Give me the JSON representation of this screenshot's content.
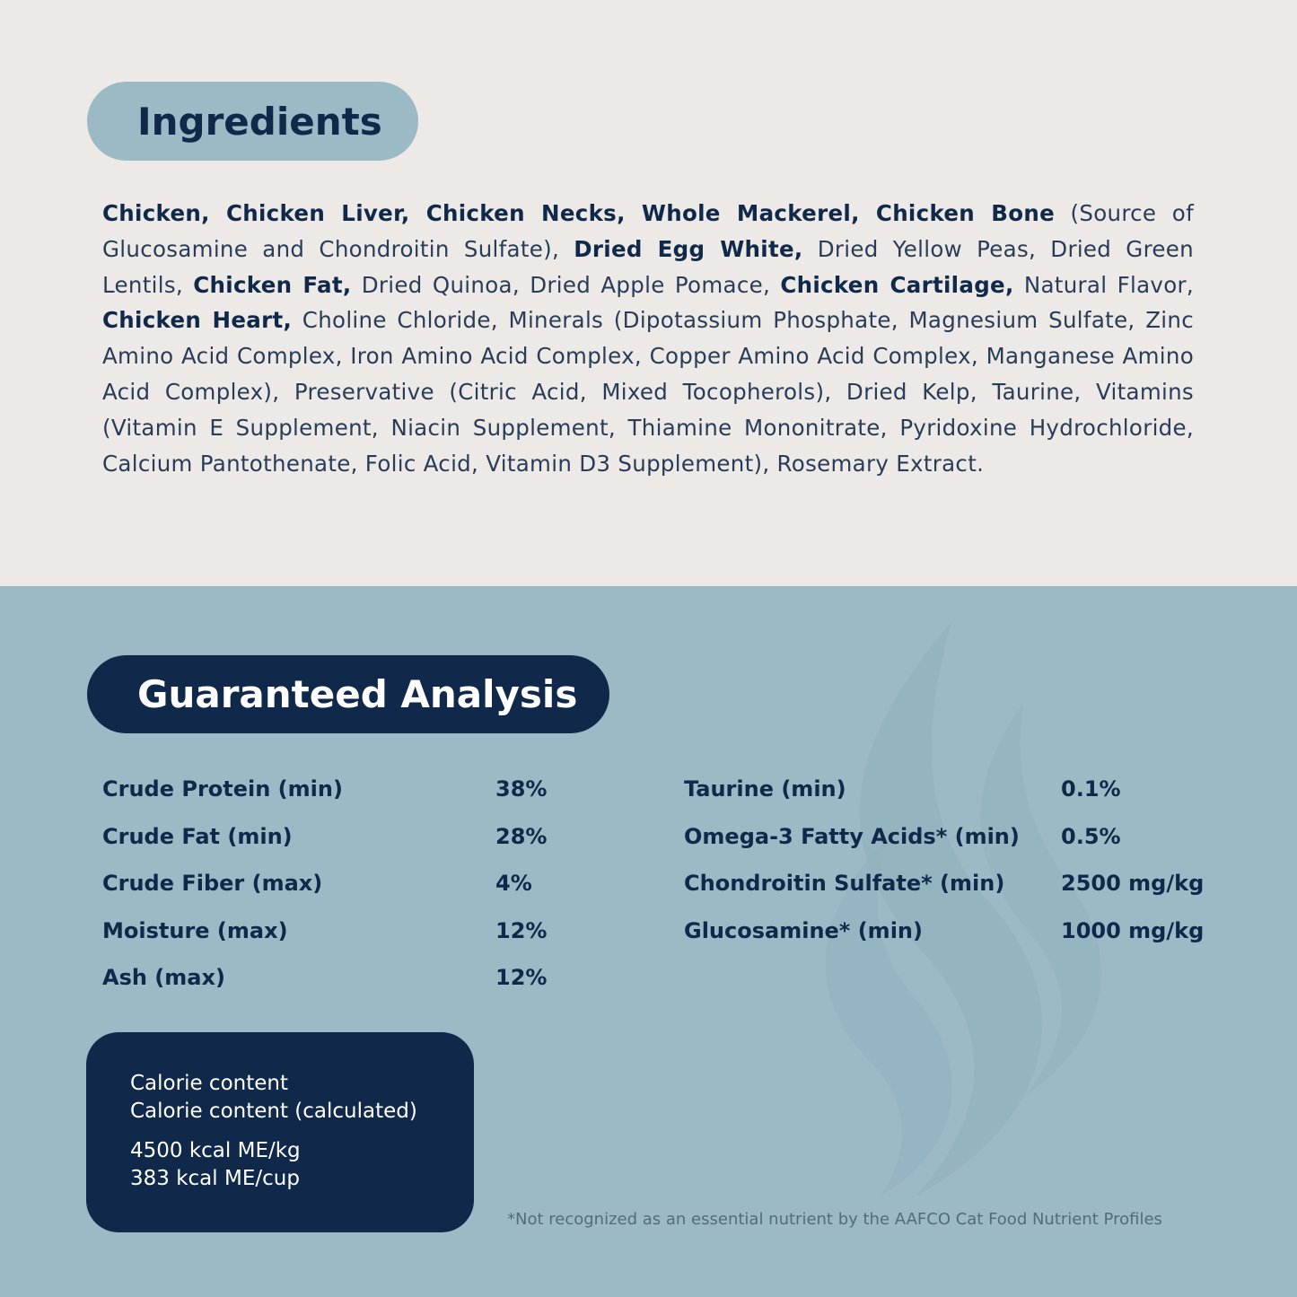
{
  "ingredients": {
    "title": "Ingredients",
    "segments": [
      {
        "text": "Chicken, Chicken Liver, Chicken Necks, Whole Mackerel, Chicken Bone",
        "bold": true
      },
      {
        "text": " (Source of Glucosamine and Chondroitin Sulfate), ",
        "bold": false
      },
      {
        "text": "Dried Egg White,",
        "bold": true
      },
      {
        "text": " Dried Yellow Peas, Dried Green Lentils, ",
        "bold": false
      },
      {
        "text": "Chicken Fat,",
        "bold": true
      },
      {
        "text": " Dried Quinoa, Dried Apple Pomace, ",
        "bold": false
      },
      {
        "text": "Chicken Cartilage,",
        "bold": true
      },
      {
        "text": " Natural Flavor, ",
        "bold": false
      },
      {
        "text": "Chicken Heart,",
        "bold": true
      },
      {
        "text": " Choline Chloride, Minerals (Dipotassium Phosphate, Magnesium Sulfate, Zinc Amino Acid Complex, Iron Amino Acid Complex, Copper Amino Acid Complex, Manganese Amino Acid Complex), Preservative (Citric Acid, Mixed Tocopherols), Dried Kelp, Taurine, Vitamins (Vitamin E Supplement, Niacin Supplement, Thiamine Mononitrate, Pyridoxine Hydrochloride, Calcium Pantothenate, Folic Acid, Vitamin D3 Supplement), Rosemary Extract.",
        "bold": false
      }
    ]
  },
  "analysis": {
    "title": "Guaranteed Analysis",
    "left": [
      {
        "label": "Crude Protein (min)",
        "value": "38%"
      },
      {
        "label": "Crude Fat (min)",
        "value": "28%"
      },
      {
        "label": "Crude Fiber (max)",
        "value": "4%"
      },
      {
        "label": "Moisture (max)",
        "value": "12%"
      },
      {
        "label": "Ash (max)",
        "value": "12%"
      }
    ],
    "right": [
      {
        "label": "Taurine (min)",
        "value": "0.1%"
      },
      {
        "label": "Omega-3 Fatty Acids* (min)",
        "value": "0.5%"
      },
      {
        "label": "Chondroitin Sulfate* (min)",
        "value": "2500 mg/kg"
      },
      {
        "label": "Glucosamine* (min)",
        "value": "1000 mg/kg"
      }
    ],
    "calorie": {
      "line1": "Calorie content",
      "line2": "Calorie content (calculated)",
      "value1": "4500 kcal ME/kg",
      "value2": "383 kcal ME/cup"
    },
    "footnote": "*Not recognized as an essential nutrient by the AAFCO Cat Food Nutrient Profiles"
  },
  "colors": {
    "navy": "#10294a",
    "light_blue": "#9bbac6",
    "cream": "#ece9e6"
  }
}
